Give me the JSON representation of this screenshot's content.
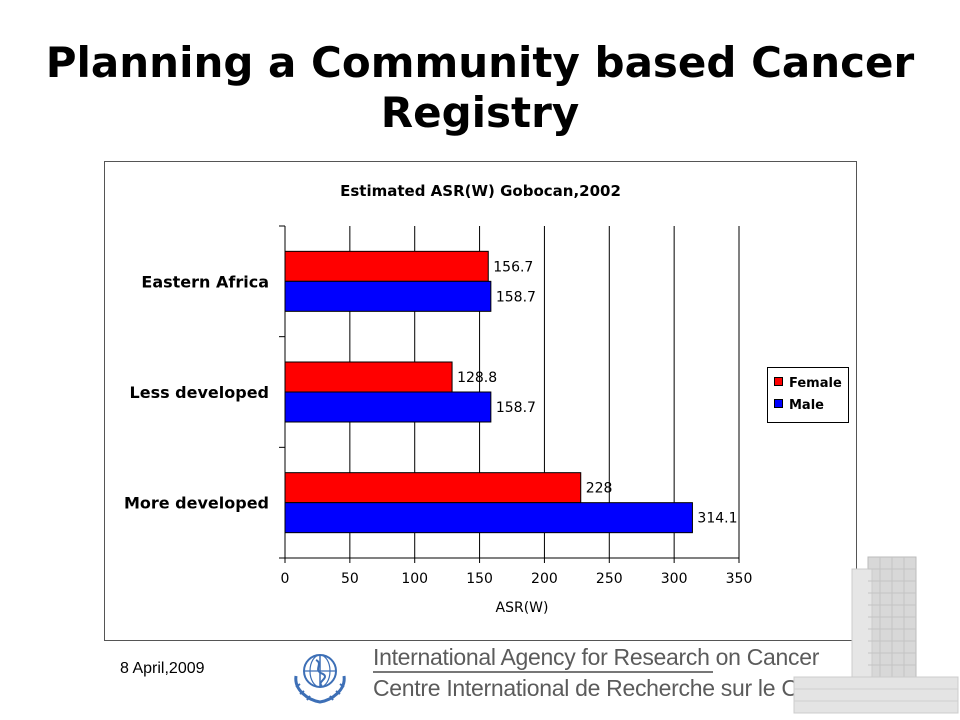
{
  "slide": {
    "title": "Planning a Community based Cancer Registry",
    "footer_date": "8 April,2009",
    "org_line1": "International Agency for Research on Cancer",
    "org_line2": "Centre International de Recherche sur le Cancer"
  },
  "chart_data": {
    "type": "bar",
    "orientation": "horizontal",
    "title": "Estimated  ASR(W) Gobocan,2002",
    "xlabel": "ASR(W)",
    "ylabel": "",
    "categories": [
      "Eastern Africa",
      "Less developed",
      "More developed"
    ],
    "series": [
      {
        "name": "Female",
        "color": "#ff0000",
        "values": [
          156.7,
          128.8,
          228
        ]
      },
      {
        "name": "Male",
        "color": "#0000ff",
        "values": [
          158.7,
          158.7,
          314.1
        ]
      }
    ],
    "data_labels": [
      [
        "156.7",
        "128.8",
        "228"
      ],
      [
        "158.7",
        "158.7",
        "314.1"
      ]
    ],
    "xlim": [
      0,
      350
    ],
    "x_ticks": [
      "0",
      "50",
      "100",
      "150",
      "200",
      "250",
      "300",
      "350"
    ],
    "grid": true,
    "legend_position": "right"
  }
}
